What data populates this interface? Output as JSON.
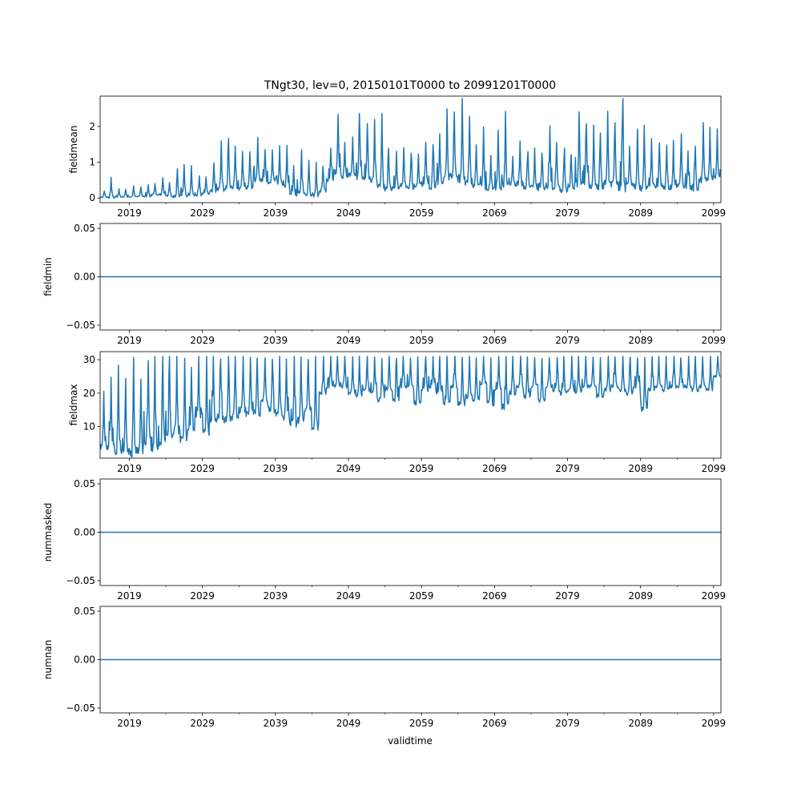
{
  "figure": {
    "title": "TNgt30, lev=0, 20150101T0000 to 20991201T0000",
    "xlabel": "validtime",
    "line_color": "#1f77b4"
  },
  "chart_data": [
    {
      "type": "line",
      "ylabel": "fieldmean",
      "xlim": [
        2015.0,
        2100.0
      ],
      "ylim": [
        -0.13,
        2.85
      ],
      "yticks": [
        0,
        1,
        2
      ],
      "ytick_labels": [
        "0",
        "1",
        "2"
      ],
      "xticks": [
        2019,
        2029,
        2039,
        2049,
        2059,
        2069,
        2079,
        2089,
        2099
      ],
      "xtick_labels": [
        "2019",
        "2029",
        "2039",
        "2049",
        "2059",
        "2069",
        "2079",
        "2089",
        "2099"
      ],
      "minor_xticks": [
        2024,
        2034,
        2044,
        2054,
        2064,
        2074,
        2084,
        2094
      ],
      "frequency": "monthly",
      "start": "2015-01",
      "end": "2099-12",
      "years": [
        2015,
        2016,
        2017,
        2018,
        2019,
        2020,
        2021,
        2022,
        2023,
        2024,
        2025,
        2026,
        2027,
        2028,
        2029,
        2030,
        2031,
        2032,
        2033,
        2034,
        2035,
        2036,
        2037,
        2038,
        2039,
        2040,
        2041,
        2042,
        2043,
        2044,
        2045,
        2046,
        2047,
        2048,
        2049,
        2050,
        2051,
        2052,
        2053,
        2054,
        2055,
        2056,
        2057,
        2058,
        2059,
        2060,
        2061,
        2062,
        2063,
        2064,
        2065,
        2066,
        2067,
        2068,
        2069,
        2070,
        2071,
        2072,
        2073,
        2074,
        2075,
        2076,
        2077,
        2078,
        2079,
        2080,
        2081,
        2082,
        2083,
        2084,
        2085,
        2086,
        2087,
        2088,
        2089,
        2090,
        2091,
        2092,
        2093,
        2094,
        2095,
        2096,
        2097,
        2098,
        2099
      ],
      "annual_peak": [
        0.2,
        0.55,
        0.25,
        0.25,
        0.35,
        0.3,
        0.38,
        0.4,
        0.55,
        0.45,
        0.78,
        0.95,
        0.88,
        0.65,
        0.6,
        0.95,
        1.6,
        1.63,
        1.4,
        1.35,
        1.25,
        1.7,
        1.4,
        1.4,
        1.45,
        1.45,
        0.9,
        1.3,
        1.05,
        0.95,
        0.9,
        1.38,
        2.4,
        1.55,
        1.65,
        2.45,
        2.05,
        2.15,
        2.35,
        1.45,
        1.35,
        1.45,
        1.3,
        1.2,
        1.55,
        1.5,
        1.85,
        2.4,
        2.4,
        2.7,
        2.35,
        1.55,
        2.05,
        1.15,
        1.85,
        2.35,
        1.2,
        1.65,
        1.25,
        1.45,
        1.3,
        2.0,
        1.5,
        1.35,
        1.25,
        2.5,
        2.05,
        1.95,
        1.85,
        2.45,
        2.2,
        2.65,
        1.5,
        2.0,
        2.05,
        1.7,
        1.6,
        1.5,
        1.6,
        1.85,
        1.35,
        1.5,
        2.05,
        2.0,
        1.95
      ],
      "annual_trough": [
        0.02,
        0.02,
        0.02,
        0.03,
        0.03,
        0.05,
        0.04,
        0.08,
        0.1,
        0.06,
        0.05,
        0.08,
        0.1,
        0.08,
        0.12,
        0.2,
        0.25,
        0.3,
        0.3,
        0.28,
        0.3,
        0.5,
        0.5,
        0.45,
        0.4,
        0.35,
        0.1,
        0.15,
        0.1,
        0.05,
        0.2,
        0.5,
        0.75,
        0.6,
        0.65,
        0.6,
        0.55,
        0.5,
        0.3,
        0.25,
        0.3,
        0.35,
        0.3,
        0.35,
        0.4,
        0.3,
        0.45,
        0.6,
        0.6,
        0.55,
        0.45,
        0.35,
        0.3,
        0.25,
        0.3,
        0.35,
        0.35,
        0.4,
        0.3,
        0.3,
        0.25,
        0.35,
        0.3,
        0.2,
        0.25,
        0.4,
        0.45,
        0.35,
        0.3,
        0.4,
        0.4,
        0.3,
        0.35,
        0.3,
        0.25,
        0.4,
        0.35,
        0.3,
        0.3,
        0.35,
        0.3,
        0.25,
        0.5,
        0.55,
        0.6
      ]
    },
    {
      "type": "line",
      "ylabel": "fieldmin",
      "xlim": [
        2015.0,
        2100.0
      ],
      "ylim": [
        -0.055,
        0.055
      ],
      "yticks": [
        0.05,
        0.0,
        -0.05
      ],
      "ytick_labels": [
        "0.05",
        "0.00",
        "−0.05"
      ],
      "xticks": [
        2019,
        2029,
        2039,
        2049,
        2059,
        2069,
        2079,
        2089,
        2099
      ],
      "xtick_labels": [
        "2019",
        "2029",
        "2039",
        "2049",
        "2059",
        "2069",
        "2079",
        "2089",
        "2099"
      ],
      "minor_xticks": [
        2024,
        2034,
        2044,
        2054,
        2064,
        2074,
        2084,
        2094
      ],
      "constant_value": 0.0
    },
    {
      "type": "line",
      "ylabel": "fieldmax",
      "xlim": [
        2015.0,
        2100.0
      ],
      "ylim": [
        0.6,
        32.4
      ],
      "yticks": [
        10,
        20,
        30
      ],
      "ytick_labels": [
        "10",
        "20",
        "30"
      ],
      "xticks": [
        2019,
        2029,
        2039,
        2049,
        2059,
        2069,
        2079,
        2089,
        2099
      ],
      "xtick_labels": [
        "2019",
        "2029",
        "2039",
        "2049",
        "2059",
        "2069",
        "2079",
        "2089",
        "2099"
      ],
      "minor_xticks": [
        2024,
        2034,
        2044,
        2054,
        2064,
        2074,
        2084,
        2094
      ],
      "frequency": "monthly",
      "start": "2015-01",
      "end": "2099-12",
      "years": [
        2015,
        2016,
        2017,
        2018,
        2019,
        2020,
        2021,
        2022,
        2023,
        2024,
        2025,
        2026,
        2027,
        2028,
        2029,
        2030,
        2031,
        2032,
        2033,
        2034,
        2035,
        2036,
        2037,
        2038,
        2039,
        2040,
        2041,
        2042,
        2043,
        2044,
        2045,
        2046,
        2047,
        2048,
        2049,
        2050,
        2051,
        2052,
        2053,
        2054,
        2055,
        2056,
        2057,
        2058,
        2059,
        2060,
        2061,
        2062,
        2063,
        2064,
        2065,
        2066,
        2067,
        2068,
        2069,
        2070,
        2071,
        2072,
        2073,
        2074,
        2075,
        2076,
        2077,
        2078,
        2079,
        2080,
        2081,
        2082,
        2083,
        2084,
        2085,
        2086,
        2087,
        2088,
        2089,
        2090,
        2091,
        2092,
        2093,
        2094,
        2095,
        2096,
        2097,
        2098,
        2099
      ],
      "annual_peak": [
        20,
        24,
        27,
        25,
        31,
        24,
        31,
        31,
        31,
        31,
        31,
        31,
        28,
        31,
        31,
        31,
        31,
        31,
        31,
        31,
        31,
        31,
        31,
        31,
        31,
        31,
        31,
        31,
        31,
        31,
        31,
        31,
        31,
        31,
        31,
        31,
        31,
        31,
        31,
        31,
        31,
        31,
        31,
        31,
        31,
        31,
        31,
        31,
        31,
        31,
        31,
        31,
        31,
        31,
        31,
        31,
        31,
        31,
        31,
        31,
        31,
        31,
        31,
        31,
        31,
        31,
        31,
        31,
        31,
        31,
        31,
        31,
        31,
        31,
        31,
        31,
        31,
        31,
        31,
        31,
        31,
        31,
        31,
        31,
        31
      ],
      "annual_trough": [
        4,
        4,
        3,
        3,
        2,
        3,
        6,
        3,
        5,
        7,
        9,
        6,
        9,
        13,
        8,
        12,
        13,
        12,
        13,
        15,
        14,
        14,
        18,
        15,
        14,
        13,
        11,
        12,
        15,
        10,
        20,
        22,
        22,
        22,
        20,
        19,
        21,
        20,
        18,
        21,
        18,
        22,
        22,
        17,
        21,
        22,
        20,
        17,
        22,
        17,
        19,
        18,
        23,
        17,
        21,
        16,
        20,
        22,
        19,
        22,
        18,
        22,
        21,
        20,
        21,
        20,
        22,
        22,
        19,
        21,
        22,
        21,
        20,
        22,
        15,
        21,
        22,
        21,
        22,
        22,
        22,
        21,
        22,
        21,
        25
      ]
    },
    {
      "type": "line",
      "ylabel": "nummasked",
      "xlim": [
        2015.0,
        2100.0
      ],
      "ylim": [
        -0.055,
        0.055
      ],
      "yticks": [
        0.05,
        0.0,
        -0.05
      ],
      "ytick_labels": [
        "0.05",
        "0.00",
        "−0.05"
      ],
      "xticks": [
        2019,
        2029,
        2039,
        2049,
        2059,
        2069,
        2079,
        2089,
        2099
      ],
      "xtick_labels": [
        "2019",
        "2029",
        "2039",
        "2049",
        "2059",
        "2069",
        "2079",
        "2089",
        "2099"
      ],
      "minor_xticks": [
        2024,
        2034,
        2044,
        2054,
        2064,
        2074,
        2084,
        2094
      ],
      "constant_value": 0.0
    },
    {
      "type": "line",
      "ylabel": "numnan",
      "xlim": [
        2015.0,
        2100.0
      ],
      "ylim": [
        -0.055,
        0.055
      ],
      "yticks": [
        0.05,
        0.0,
        -0.05
      ],
      "ytick_labels": [
        "0.05",
        "0.00",
        "−0.05"
      ],
      "xticks": [
        2019,
        2029,
        2039,
        2049,
        2059,
        2069,
        2079,
        2089,
        2099
      ],
      "xtick_labels": [
        "2019",
        "2029",
        "2039",
        "2049",
        "2059",
        "2069",
        "2079",
        "2089",
        "2099"
      ],
      "minor_xticks": [
        2024,
        2034,
        2044,
        2054,
        2064,
        2074,
        2084,
        2094
      ],
      "constant_value": 0.0
    }
  ]
}
